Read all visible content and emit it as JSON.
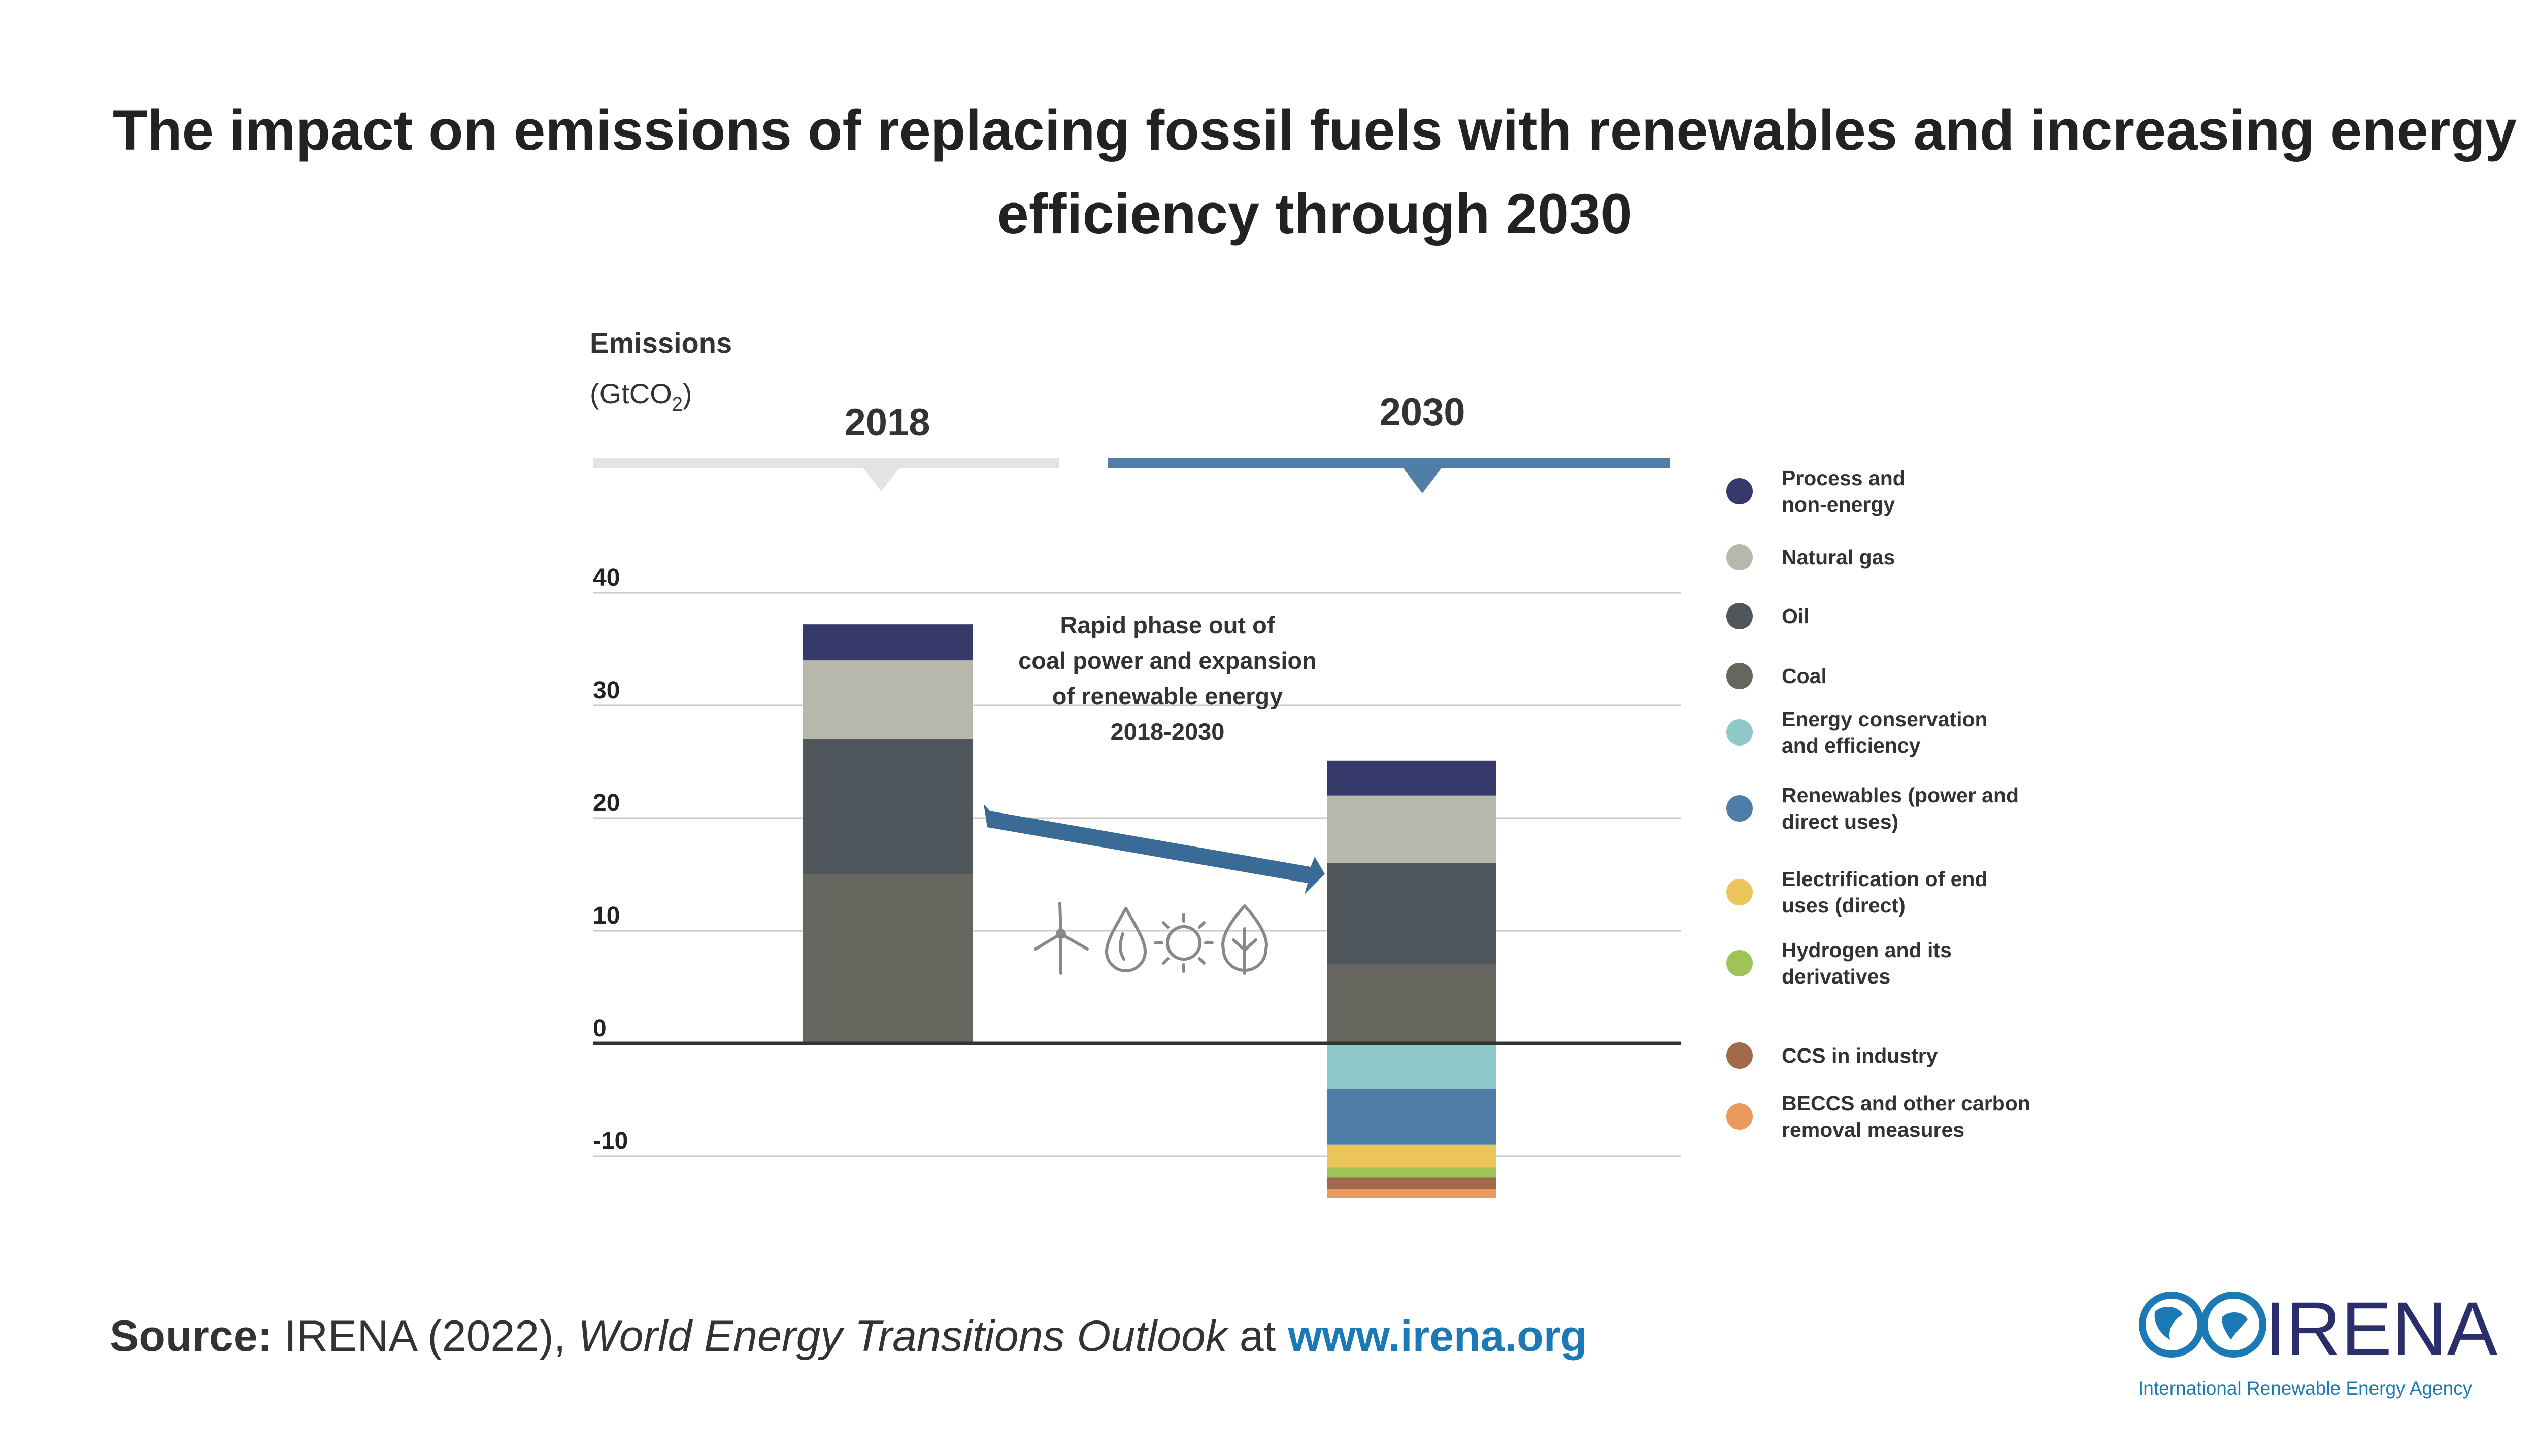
{
  "title_line1": "The impact on emissions of replacing fossil fuels with renewables and increasing energy",
  "title_line2": "efficiency through 2030",
  "source": {
    "label": "Source:",
    "text_plain": " IRENA (2022), ",
    "text_italic": "World Energy Transitions Outlook",
    "text_at": " at ",
    "link": "www.irena.org"
  },
  "logo": {
    "word": "IRENA",
    "subtitle": "International Renewable Energy Agency"
  },
  "icons": [
    "wind-turbine-icon",
    "water-drop-icon",
    "sun-icon",
    "leaf-icon"
  ],
  "colors": {
    "process": "#353a6b",
    "natural_gas": "#b8b7ab",
    "oil": "#4f565c",
    "coal": "#67665e",
    "efficiency": "#8ec8c8",
    "renewables": "#4e7da8",
    "electrification": "#ecc55a",
    "hydrogen": "#9ec458",
    "ccs": "#a2694b",
    "beccs": "#e99a5c",
    "arrow": "#3a6a96",
    "header_2018": "#e3e3e3",
    "header_2030": "#4f7fa6"
  },
  "chart_data": {
    "type": "bar",
    "stacked": true,
    "ylabel": "Emissions",
    "yunit_prefix": "(GtCO",
    "yunit_sub": "2",
    "yunit_suffix": ")",
    "ylim": [
      -14,
      40
    ],
    "yticks": [
      40,
      30,
      20,
      10,
      0,
      -10
    ],
    "grid": true,
    "legend_position": "right",
    "categories": [
      "2018",
      "2030"
    ],
    "annotation": [
      "Rapid phase out of",
      "coal power and expansion",
      "of renewable energy",
      "2018-2030"
    ],
    "series": [
      {
        "name": "Process and non-energy",
        "name_lines": [
          "Process and",
          "non-energy"
        ],
        "color_key": "process",
        "values": [
          3.2,
          3.1
        ]
      },
      {
        "name": "Natural gas",
        "name_lines": [
          "Natural gas"
        ],
        "color_key": "natural_gas",
        "values": [
          7,
          6
        ]
      },
      {
        "name": "Oil",
        "name_lines": [
          "Oil"
        ],
        "color_key": "oil",
        "values": [
          12,
          9
        ]
      },
      {
        "name": "Coal",
        "name_lines": [
          "Coal"
        ],
        "color_key": "coal",
        "values": [
          15,
          7
        ]
      },
      {
        "name": "Energy conservation and efficiency",
        "name_lines": [
          "Energy conservation",
          "and efficiency"
        ],
        "color_key": "efficiency",
        "values": [
          0,
          -4
        ]
      },
      {
        "name": "Renewables (power and direct uses)",
        "name_lines": [
          "Renewables (power and",
          "direct uses)"
        ],
        "color_key": "renewables",
        "values": [
          0,
          -5
        ]
      },
      {
        "name": "Electrification of end uses (direct)",
        "name_lines": [
          "Electrification of end",
          "uses (direct)"
        ],
        "color_key": "electrification",
        "values": [
          0,
          -2
        ]
      },
      {
        "name": "Hydrogen and its derivatives",
        "name_lines": [
          "Hydrogen and its",
          "derivatives"
        ],
        "color_key": "hydrogen",
        "values": [
          0,
          -0.9
        ]
      },
      {
        "name": "CCS in industry",
        "name_lines": [
          "CCS in industry"
        ],
        "color_key": "ccs",
        "values": [
          0,
          -1
        ]
      },
      {
        "name": "BECCS and other carbon removal measures",
        "name_lines": [
          "BECCS and other carbon",
          "removal measures"
        ],
        "color_key": "beccs",
        "values": [
          0,
          -0.8
        ]
      }
    ]
  }
}
